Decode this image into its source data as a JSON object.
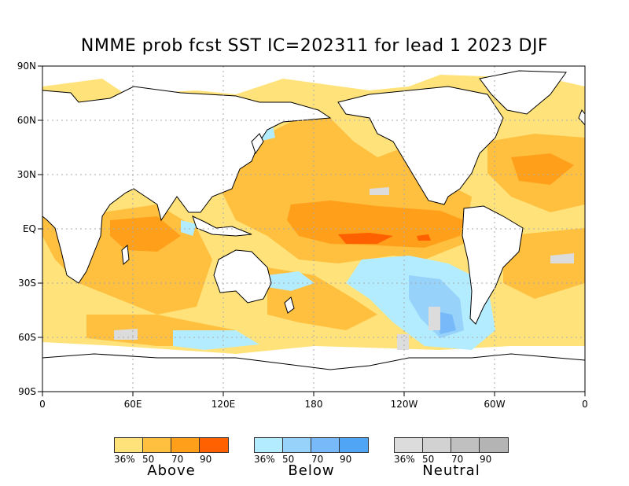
{
  "title": "NMME prob fcst SST IC=202311 for lead 1 2023 DJF",
  "latitude_labels": [
    "90N",
    "60N",
    "30N",
    "EQ",
    "30S",
    "60S",
    "90S"
  ],
  "longitude_labels": [
    "0",
    "60E",
    "120E",
    "180",
    "120W",
    "60W",
    "0"
  ],
  "legend": {
    "ticks": [
      "36%",
      "50",
      "70",
      "90"
    ],
    "groups": [
      {
        "label": "Above",
        "colors": [
          "#ffe37a",
          "#ffbf3f",
          "#ff9f1a",
          "#ff6000"
        ]
      },
      {
        "label": "Below",
        "colors": [
          "#b4ecff",
          "#96d2fa",
          "#78b9fa",
          "#50a5f5"
        ]
      },
      {
        "label": "Neutral",
        "colors": [
          "#dcdcdc",
          "#d2d2d2",
          "#c0c0c0",
          "#b4b4b4"
        ]
      }
    ]
  },
  "colors": {
    "land": "#ffffff",
    "outline": "#000000",
    "grid": "#aaaaaa"
  }
}
